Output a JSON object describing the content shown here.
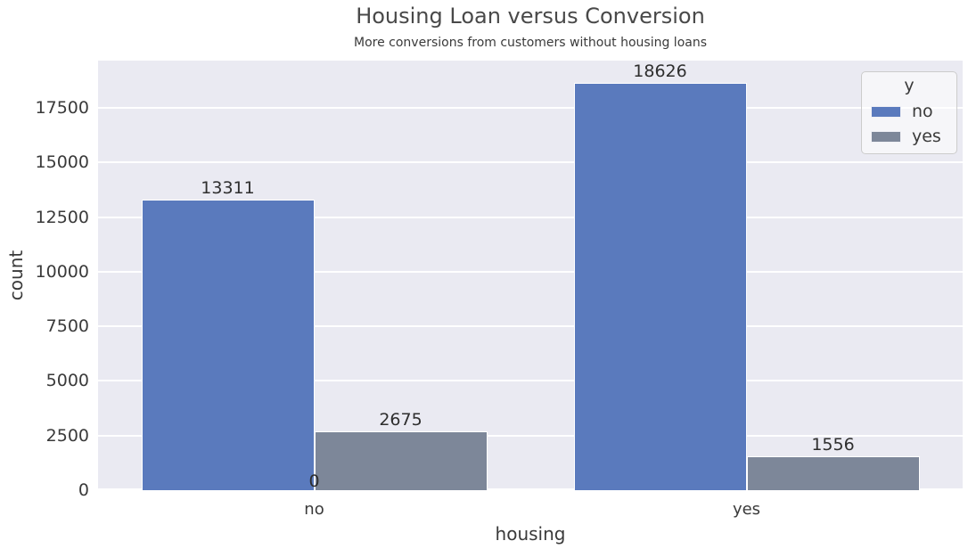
{
  "chart_data": {
    "type": "bar",
    "title": "Housing Loan versus Conversion",
    "subtitle": "More conversions from customers without housing loans",
    "xlabel": "housing",
    "ylabel": "count",
    "categories": [
      "no",
      "yes"
    ],
    "series": [
      {
        "name": "no",
        "color": "#5a7abd",
        "values": [
          13311,
          18626
        ]
      },
      {
        "name": "yes",
        "color": "#7d8799",
        "values": [
          2675,
          1556
        ]
      }
    ],
    "bar_value_labels": [
      [
        "13311",
        "18626"
      ],
      [
        "2675",
        "1556"
      ]
    ],
    "annotations": [
      {
        "text": "0",
        "category_index": 0,
        "position": "baseline-center"
      }
    ],
    "yticks": [
      0,
      2500,
      5000,
      7500,
      10000,
      12500,
      15000,
      17500
    ],
    "ylim": [
      0,
      19660
    ],
    "grid": true,
    "legend": {
      "title": "y",
      "entries": [
        "no",
        "yes"
      ],
      "position": "upper-right"
    },
    "colors": {
      "plot_background": "#eaeaf2",
      "gridline": "#ffffff",
      "text": "#3a3a3a",
      "bar_no": "#5a7abd",
      "bar_yes": "#7d8799"
    }
  }
}
